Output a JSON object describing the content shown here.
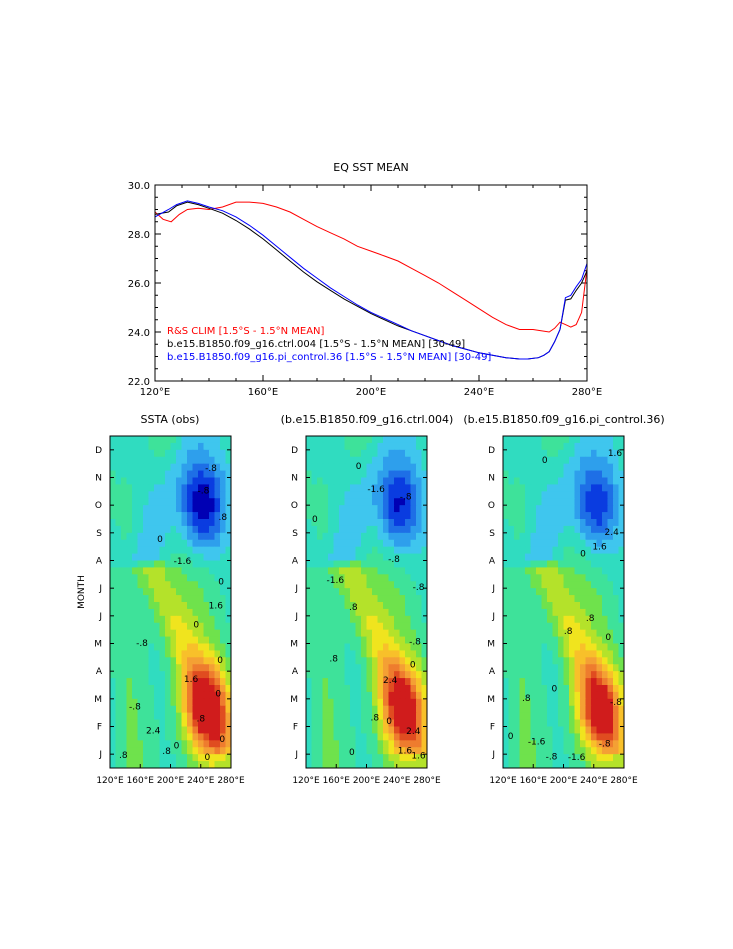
{
  "chart_data": [
    {
      "type": "line",
      "title": "EQ SST MEAN",
      "xlabel": "",
      "ylabel": "",
      "xlim": [
        120,
        280
      ],
      "ylim": [
        22,
        30
      ],
      "xticks": [
        120,
        160,
        200,
        240,
        280
      ],
      "xtick_labels": [
        "120°E",
        "160°E",
        "200°E",
        "240°E",
        "280°E"
      ],
      "yticks": [
        22,
        24,
        26,
        28,
        30
      ],
      "ytick_labels": [
        "22.0",
        "24.0",
        "26.0",
        "28.0",
        "30.0"
      ],
      "legend_position": "bottom-left",
      "series": [
        {
          "name": "R&S CLIM [1.5°S - 1.5°N MEAN]",
          "color": "#ff0000",
          "x": [
            120,
            123,
            126,
            129,
            132,
            136,
            140,
            145,
            150,
            155,
            160,
            165,
            170,
            175,
            180,
            185,
            190,
            195,
            200,
            205,
            210,
            215,
            220,
            225,
            230,
            235,
            240,
            245,
            250,
            255,
            260,
            263,
            266,
            268,
            270,
            272,
            274,
            276,
            278,
            280
          ],
          "y": [
            28.9,
            28.6,
            28.5,
            28.8,
            29.0,
            29.05,
            29.0,
            29.1,
            29.3,
            29.3,
            29.25,
            29.1,
            28.9,
            28.6,
            28.3,
            28.05,
            27.8,
            27.5,
            27.3,
            27.1,
            26.9,
            26.6,
            26.3,
            26.0,
            25.65,
            25.3,
            24.95,
            24.6,
            24.3,
            24.1,
            24.1,
            24.05,
            24.0,
            24.15,
            24.4,
            24.3,
            24.2,
            24.3,
            24.8,
            26.6
          ]
        },
        {
          "name": "b.e15.B1850.f09_g16.ctrl.004 [1.5°S - 1.5°N MEAN] [30-49]",
          "color": "#000000",
          "x": [
            120,
            125,
            128,
            132,
            136,
            140,
            145,
            150,
            155,
            160,
            165,
            170,
            175,
            180,
            185,
            190,
            195,
            200,
            205,
            210,
            215,
            220,
            225,
            230,
            235,
            240,
            245,
            250,
            255,
            258,
            262,
            264,
            266,
            268,
            270,
            272,
            274,
            276,
            278,
            280
          ],
          "y": [
            28.8,
            28.9,
            29.15,
            29.3,
            29.2,
            29.05,
            28.85,
            28.55,
            28.2,
            27.8,
            27.35,
            26.9,
            26.45,
            26.05,
            25.7,
            25.35,
            25.05,
            24.75,
            24.5,
            24.25,
            24.05,
            23.85,
            23.65,
            23.45,
            23.3,
            23.15,
            23.05,
            22.95,
            22.9,
            22.9,
            22.95,
            23.05,
            23.2,
            23.6,
            24.1,
            25.3,
            25.35,
            25.7,
            26.0,
            26.5
          ]
        },
        {
          "name": "b.e15.B1850.f09_g16.pi_control.36 [1.5°S - 1.5°N MEAN] [30-49]",
          "color": "#0000ff",
          "x": [
            120,
            125,
            128,
            132,
            136,
            140,
            145,
            150,
            155,
            160,
            165,
            170,
            175,
            180,
            185,
            190,
            195,
            200,
            205,
            210,
            215,
            220,
            225,
            230,
            235,
            240,
            245,
            250,
            255,
            258,
            262,
            264,
            266,
            268,
            270,
            272,
            274,
            276,
            278,
            280
          ],
          "y": [
            28.7,
            29.0,
            29.2,
            29.35,
            29.25,
            29.1,
            28.95,
            28.7,
            28.35,
            27.95,
            27.5,
            27.05,
            26.6,
            26.2,
            25.8,
            25.45,
            25.1,
            24.8,
            24.55,
            24.3,
            24.05,
            23.85,
            23.65,
            23.45,
            23.3,
            23.15,
            23.05,
            22.95,
            22.9,
            22.9,
            22.95,
            23.05,
            23.2,
            23.6,
            24.1,
            25.4,
            25.5,
            25.85,
            26.15,
            26.8
          ]
        }
      ]
    },
    {
      "type": "heatmap",
      "title": "SSTA (obs)",
      "ylabel": "MONTH",
      "xtick_labels": [
        "120°E",
        "160°E",
        "200°E",
        "240°E",
        "280°E"
      ],
      "ytick_labels": [
        "J",
        "F",
        "M",
        "A",
        "M",
        "J",
        "J",
        "A",
        "S",
        "O",
        "N",
        "D"
      ],
      "contour_labels": [
        "0",
        "0",
        "0",
        "0",
        "0",
        "0",
        "-.8",
        "-.8",
        "-1.6",
        "-.8",
        ".8",
        "1.6",
        "1.6",
        "2.4",
        ".8",
        ".8",
        ".8",
        "0",
        "0",
        "-.8"
      ]
    },
    {
      "type": "heatmap",
      "title": "(b.e15.B1850.f09_g16.ctrl.004)",
      "ylabel": "",
      "xtick_labels": [
        "120°E",
        "160°E",
        "200°E",
        "240°E",
        "280°E"
      ],
      "ytick_labels": [
        "J",
        "F",
        "M",
        "A",
        "M",
        "J",
        "J",
        "A",
        "S",
        "O",
        "N",
        "D"
      ],
      "contour_labels": [
        "0",
        "0",
        "0",
        "-.8",
        "-.8",
        "-1.6",
        "-1.6",
        ".8",
        ".8",
        "1.6",
        "1.6",
        "2.4",
        "2.4",
        ".8",
        "0",
        "0",
        "-.8",
        "-.8"
      ]
    },
    {
      "type": "heatmap",
      "title": "(b.e15.B1850.f09_g16.pi_control.36)",
      "ylabel": "",
      "xtick_labels": [
        "120°E",
        "160°E",
        "200°E",
        "240°E",
        "280°E"
      ],
      "ytick_labels": [
        "J",
        "F",
        "M",
        "A",
        "M",
        "J",
        "J",
        "A",
        "S",
        "O",
        "N",
        "D"
      ],
      "contour_labels": [
        "0",
        "0",
        "0",
        "-.8",
        "-.8",
        "-1.6",
        "-1.6",
        ".8",
        ".8",
        "1.6",
        "1.6",
        "2.4",
        ".8",
        "0",
        "0",
        "-.8"
      ]
    }
  ]
}
